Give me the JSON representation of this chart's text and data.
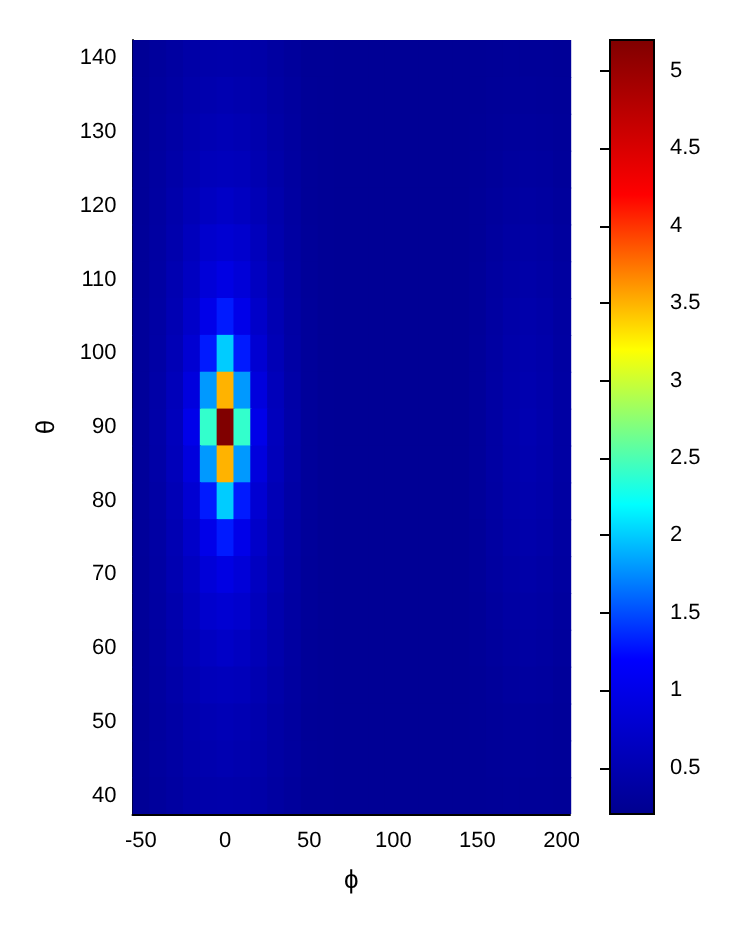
{
  "chart_data": {
    "type": "heatmap",
    "xlabel": "ϕ",
    "ylabel": "θ",
    "categories": [
      "-50",
      null,
      null,
      null,
      null,
      "0",
      null,
      null,
      null,
      null,
      "50",
      null,
      null,
      null,
      null,
      "100",
      null,
      null,
      null,
      null,
      "150",
      null,
      null,
      null,
      null,
      "200"
    ],
    "y_categories": [
      "140",
      null,
      "130",
      null,
      "120",
      null,
      "110",
      null,
      "100",
      null,
      "90",
      null,
      "80",
      null,
      "70",
      null,
      "60",
      null,
      "50",
      null,
      "40"
    ],
    "clim": [
      0.2,
      5.2
    ],
    "cticks": [
      0.5,
      1,
      1.5,
      2,
      2.5,
      3,
      3.5,
      4,
      4.5,
      5
    ],
    "cells": [
      [
        0.26,
        0.32,
        0.36,
        0.41,
        0.44,
        0.45,
        0.44,
        0.41,
        0.36,
        0.32,
        0.26,
        0.26,
        0.25,
        0.25,
        0.25,
        0.25,
        0.25,
        0.25,
        0.25,
        0.25,
        0.26,
        0.27,
        0.28,
        0.28,
        0.28,
        0.27
      ],
      [
        0.27,
        0.33,
        0.38,
        0.44,
        0.48,
        0.5,
        0.48,
        0.44,
        0.38,
        0.33,
        0.27,
        0.26,
        0.25,
        0.25,
        0.25,
        0.25,
        0.25,
        0.25,
        0.25,
        0.25,
        0.26,
        0.28,
        0.29,
        0.3,
        0.29,
        0.28
      ],
      [
        0.27,
        0.34,
        0.4,
        0.47,
        0.52,
        0.55,
        0.52,
        0.47,
        0.4,
        0.34,
        0.27,
        0.26,
        0.25,
        0.25,
        0.25,
        0.25,
        0.25,
        0.25,
        0.25,
        0.25,
        0.27,
        0.29,
        0.31,
        0.32,
        0.31,
        0.29
      ],
      [
        0.28,
        0.35,
        0.42,
        0.5,
        0.58,
        0.6,
        0.58,
        0.5,
        0.42,
        0.35,
        0.28,
        0.26,
        0.25,
        0.25,
        0.25,
        0.25,
        0.25,
        0.25,
        0.25,
        0.25,
        0.27,
        0.3,
        0.33,
        0.34,
        0.33,
        0.3
      ],
      [
        0.28,
        0.36,
        0.45,
        0.55,
        0.65,
        0.7,
        0.65,
        0.55,
        0.45,
        0.36,
        0.28,
        0.26,
        0.25,
        0.25,
        0.25,
        0.25,
        0.25,
        0.25,
        0.25,
        0.25,
        0.28,
        0.32,
        0.35,
        0.37,
        0.35,
        0.32
      ],
      [
        0.29,
        0.37,
        0.47,
        0.6,
        0.75,
        0.8,
        0.75,
        0.6,
        0.47,
        0.37,
        0.29,
        0.26,
        0.25,
        0.25,
        0.25,
        0.25,
        0.25,
        0.25,
        0.25,
        0.25,
        0.28,
        0.33,
        0.38,
        0.4,
        0.38,
        0.33
      ],
      [
        0.29,
        0.38,
        0.5,
        0.65,
        0.85,
        0.95,
        0.85,
        0.65,
        0.5,
        0.38,
        0.29,
        0.26,
        0.25,
        0.25,
        0.25,
        0.25,
        0.25,
        0.25,
        0.25,
        0.25,
        0.29,
        0.35,
        0.4,
        0.42,
        0.4,
        0.35
      ],
      [
        0.3,
        0.39,
        0.52,
        0.72,
        1.0,
        1.3,
        1.0,
        0.72,
        0.52,
        0.39,
        0.3,
        0.26,
        0.25,
        0.25,
        0.25,
        0.25,
        0.25,
        0.25,
        0.25,
        0.25,
        0.29,
        0.36,
        0.42,
        0.45,
        0.42,
        0.36
      ],
      [
        0.3,
        0.4,
        0.55,
        0.8,
        1.3,
        2.0,
        1.3,
        0.8,
        0.55,
        0.4,
        0.3,
        0.26,
        0.25,
        0.25,
        0.25,
        0.25,
        0.25,
        0.25,
        0.25,
        0.25,
        0.3,
        0.37,
        0.44,
        0.47,
        0.44,
        0.37
      ],
      [
        0.3,
        0.41,
        0.58,
        0.9,
        1.8,
        3.5,
        1.8,
        0.9,
        0.58,
        0.41,
        0.3,
        0.26,
        0.25,
        0.25,
        0.25,
        0.25,
        0.25,
        0.25,
        0.25,
        0.25,
        0.3,
        0.38,
        0.45,
        0.49,
        0.45,
        0.38
      ],
      [
        0.3,
        0.42,
        0.6,
        1.0,
        2.4,
        5.2,
        2.4,
        1.0,
        0.6,
        0.42,
        0.3,
        0.26,
        0.25,
        0.25,
        0.25,
        0.25,
        0.25,
        0.25,
        0.25,
        0.25,
        0.3,
        0.38,
        0.46,
        0.5,
        0.46,
        0.38
      ],
      [
        0.3,
        0.41,
        0.58,
        0.9,
        1.8,
        3.5,
        1.8,
        0.9,
        0.58,
        0.41,
        0.3,
        0.26,
        0.25,
        0.25,
        0.25,
        0.25,
        0.25,
        0.25,
        0.25,
        0.25,
        0.3,
        0.38,
        0.45,
        0.49,
        0.45,
        0.38
      ],
      [
        0.3,
        0.4,
        0.55,
        0.8,
        1.3,
        2.0,
        1.3,
        0.8,
        0.55,
        0.4,
        0.3,
        0.26,
        0.25,
        0.25,
        0.25,
        0.25,
        0.25,
        0.25,
        0.25,
        0.25,
        0.3,
        0.37,
        0.44,
        0.47,
        0.44,
        0.37
      ],
      [
        0.3,
        0.39,
        0.52,
        0.72,
        1.0,
        1.3,
        1.0,
        0.72,
        0.52,
        0.39,
        0.3,
        0.26,
        0.25,
        0.25,
        0.25,
        0.25,
        0.25,
        0.25,
        0.25,
        0.25,
        0.29,
        0.36,
        0.42,
        0.45,
        0.42,
        0.36
      ],
      [
        0.29,
        0.38,
        0.5,
        0.65,
        0.85,
        0.95,
        0.85,
        0.65,
        0.5,
        0.38,
        0.29,
        0.26,
        0.25,
        0.25,
        0.25,
        0.25,
        0.25,
        0.25,
        0.25,
        0.25,
        0.29,
        0.35,
        0.4,
        0.42,
        0.4,
        0.35
      ],
      [
        0.29,
        0.37,
        0.47,
        0.6,
        0.75,
        0.8,
        0.75,
        0.6,
        0.47,
        0.37,
        0.29,
        0.26,
        0.25,
        0.25,
        0.25,
        0.25,
        0.25,
        0.25,
        0.25,
        0.25,
        0.28,
        0.33,
        0.38,
        0.4,
        0.38,
        0.33
      ],
      [
        0.28,
        0.36,
        0.45,
        0.55,
        0.65,
        0.7,
        0.65,
        0.55,
        0.45,
        0.36,
        0.28,
        0.26,
        0.25,
        0.25,
        0.25,
        0.25,
        0.25,
        0.25,
        0.25,
        0.25,
        0.28,
        0.32,
        0.35,
        0.37,
        0.35,
        0.32
      ],
      [
        0.28,
        0.35,
        0.42,
        0.5,
        0.58,
        0.6,
        0.58,
        0.5,
        0.42,
        0.35,
        0.28,
        0.26,
        0.25,
        0.25,
        0.25,
        0.25,
        0.25,
        0.25,
        0.25,
        0.25,
        0.27,
        0.3,
        0.33,
        0.34,
        0.33,
        0.3
      ],
      [
        0.27,
        0.34,
        0.4,
        0.47,
        0.52,
        0.55,
        0.52,
        0.47,
        0.4,
        0.34,
        0.27,
        0.26,
        0.25,
        0.25,
        0.25,
        0.25,
        0.25,
        0.25,
        0.25,
        0.25,
        0.27,
        0.29,
        0.31,
        0.32,
        0.31,
        0.29
      ],
      [
        0.27,
        0.33,
        0.38,
        0.44,
        0.48,
        0.5,
        0.48,
        0.44,
        0.38,
        0.33,
        0.27,
        0.26,
        0.25,
        0.25,
        0.25,
        0.25,
        0.25,
        0.25,
        0.25,
        0.25,
        0.26,
        0.28,
        0.29,
        0.3,
        0.29,
        0.28
      ],
      [
        0.26,
        0.32,
        0.36,
        0.41,
        0.44,
        0.45,
        0.44,
        0.41,
        0.36,
        0.32,
        0.26,
        0.26,
        0.25,
        0.25,
        0.25,
        0.25,
        0.25,
        0.25,
        0.25,
        0.25,
        0.26,
        0.27,
        0.28,
        0.28,
        0.28,
        0.27
      ]
    ]
  }
}
